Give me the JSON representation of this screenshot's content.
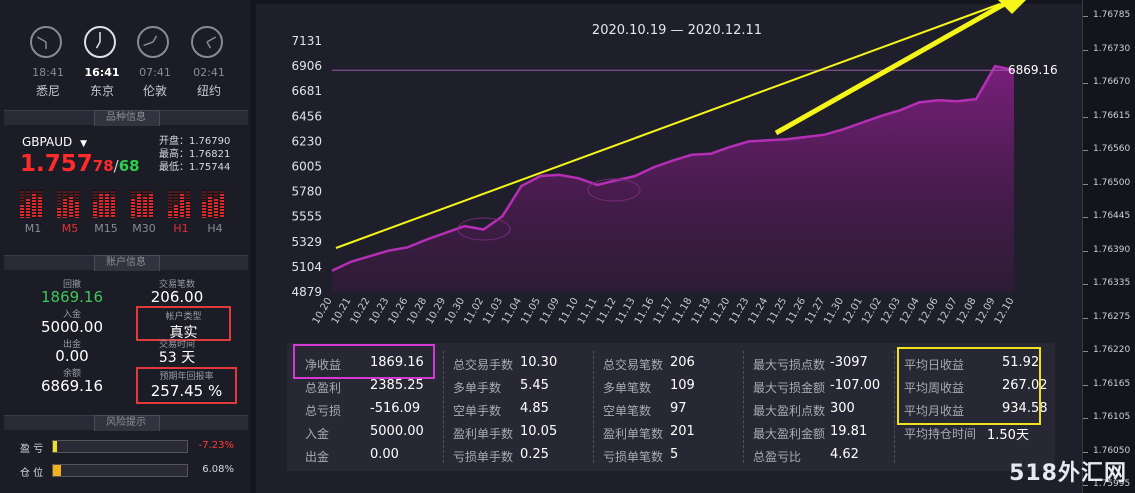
{
  "clocks": [
    {
      "time": "18:41",
      "city": "悉尼",
      "active": false
    },
    {
      "time": "16:41",
      "city": "东京",
      "active": true
    },
    {
      "time": "07:41",
      "city": "伦敦",
      "active": false
    },
    {
      "time": "02:41",
      "city": "纽约",
      "active": false
    }
  ],
  "symbol_panel": {
    "header": "品种信息",
    "symbol": "GBPAUD",
    "price_main": "1.757",
    "price_up": "78",
    "price_sep": "/",
    "price_down": "68",
    "open_label": "开盘：",
    "open_value": "1.76790",
    "high_label": "最高：",
    "high_value": "1.76821",
    "low_label": "最低：",
    "low_value": "1.75744",
    "timeframes": [
      "M1",
      "M5",
      "M15",
      "M30",
      "H1",
      "H4"
    ],
    "active_timeframes": [
      "M5",
      "H1"
    ]
  },
  "account_panel": {
    "header": "账户信息",
    "drawdown_label": "回撤",
    "drawdown_value": "1869.16",
    "trades_label": "交易笔数",
    "trades_value": "206.00",
    "deposit_label": "入金",
    "deposit_value": "5000.00",
    "type_label": "帐户类型",
    "type_value": "真实",
    "withdraw_label": "出金",
    "withdraw_value": "0.00",
    "time_label": "交易时间",
    "time_value": "53 天",
    "balance_label": "余额",
    "balance_value": "6869.16",
    "annual_label": "预期年回报率",
    "annual_value": "257.45 %"
  },
  "risk_panel": {
    "header": "风险提示",
    "profit_label": "盈  亏",
    "profit_value": "-7.23%",
    "profit_fill": 0.03,
    "position_label": "仓  位",
    "position_value": "6.08%",
    "position_fill": 0.06
  },
  "chart_data": {
    "type": "area",
    "title": "2020.10.19 — 2020.12.11",
    "categories": [
      "10.20",
      "10.21",
      "10.22",
      "10.23",
      "10.26",
      "10.28",
      "10.29",
      "10.30",
      "11.02",
      "11.03",
      "11.04",
      "11.05",
      "11.09",
      "11.10",
      "11.11",
      "11.12",
      "11.13",
      "11.16",
      "11.17",
      "11.18",
      "11.19",
      "11.20",
      "11.23",
      "11.24",
      "11.25",
      "11.26",
      "11.27",
      "11.30",
      "12.01",
      "12.02",
      "12.03",
      "12.04",
      "12.06",
      "12.07",
      "12.08",
      "12.09",
      "12.10"
    ],
    "values": [
      5070,
      5150,
      5200,
      5250,
      5280,
      5350,
      5410,
      5470,
      5440,
      5560,
      5830,
      5920,
      5930,
      5900,
      5840,
      5880,
      5920,
      6000,
      6060,
      6110,
      6120,
      6180,
      6230,
      6240,
      6250,
      6270,
      6290,
      6340,
      6400,
      6460,
      6510,
      6580,
      6600,
      6590,
      6610,
      6906,
      6869.16
    ],
    "yticks": [
      "7131",
      "6906",
      "6681",
      "6456",
      "6230",
      "6005",
      "5780",
      "5555",
      "5329",
      "5104",
      "4879"
    ],
    "ylim": [
      4879,
      7131
    ],
    "end_label": "6869.16",
    "series_color": "#b42fb4"
  },
  "stats": {
    "col1": [
      {
        "label": "净收益",
        "value": "1869.16"
      },
      {
        "label": "总盈利",
        "value": "2385.25"
      },
      {
        "label": "总亏损",
        "value": "-516.09"
      },
      {
        "label": "入金",
        "value": "5000.00"
      },
      {
        "label": "出金",
        "value": "0.00"
      }
    ],
    "col2": [
      {
        "label": "总交易手数",
        "value": "10.30"
      },
      {
        "label": "多单手数",
        "value": "5.45"
      },
      {
        "label": "空单手数",
        "value": "4.85"
      },
      {
        "label": "盈利单手数",
        "value": "10.05"
      },
      {
        "label": "亏损单手数",
        "value": "0.25"
      }
    ],
    "col3": [
      {
        "label": "总交易笔数",
        "value": "206"
      },
      {
        "label": "多单笔数",
        "value": "109"
      },
      {
        "label": "空单笔数",
        "value": "97"
      },
      {
        "label": "盈利单笔数",
        "value": "201"
      },
      {
        "label": "亏损单笔数",
        "value": "5"
      }
    ],
    "col4": [
      {
        "label": "最大亏损点数",
        "value": "-3097"
      },
      {
        "label": "最大亏损金额",
        "value": "-107.00"
      },
      {
        "label": "最大盈利点数",
        "value": "300"
      },
      {
        "label": "最大盈利金额",
        "value": "19.81"
      },
      {
        "label": "总盈亏比",
        "value": "4.62"
      }
    ],
    "col5": [
      {
        "label": "平均日收益",
        "value": "51.92"
      },
      {
        "label": "平均周收益",
        "value": "267.02"
      },
      {
        "label": "平均月收益",
        "value": "934.58"
      },
      {
        "label": "平均持仓时间",
        "value": "1.50天"
      }
    ]
  },
  "right_axis": [
    "1.76785",
    "1.76730",
    "1.76670",
    "1.76615",
    "1.76560",
    "1.76500",
    "1.76445",
    "1.76390",
    "1.76335",
    "1.76275",
    "1.76220",
    "1.76165",
    "1.76105",
    "1.76050",
    "1.75995"
  ],
  "watermark": "518外汇网"
}
